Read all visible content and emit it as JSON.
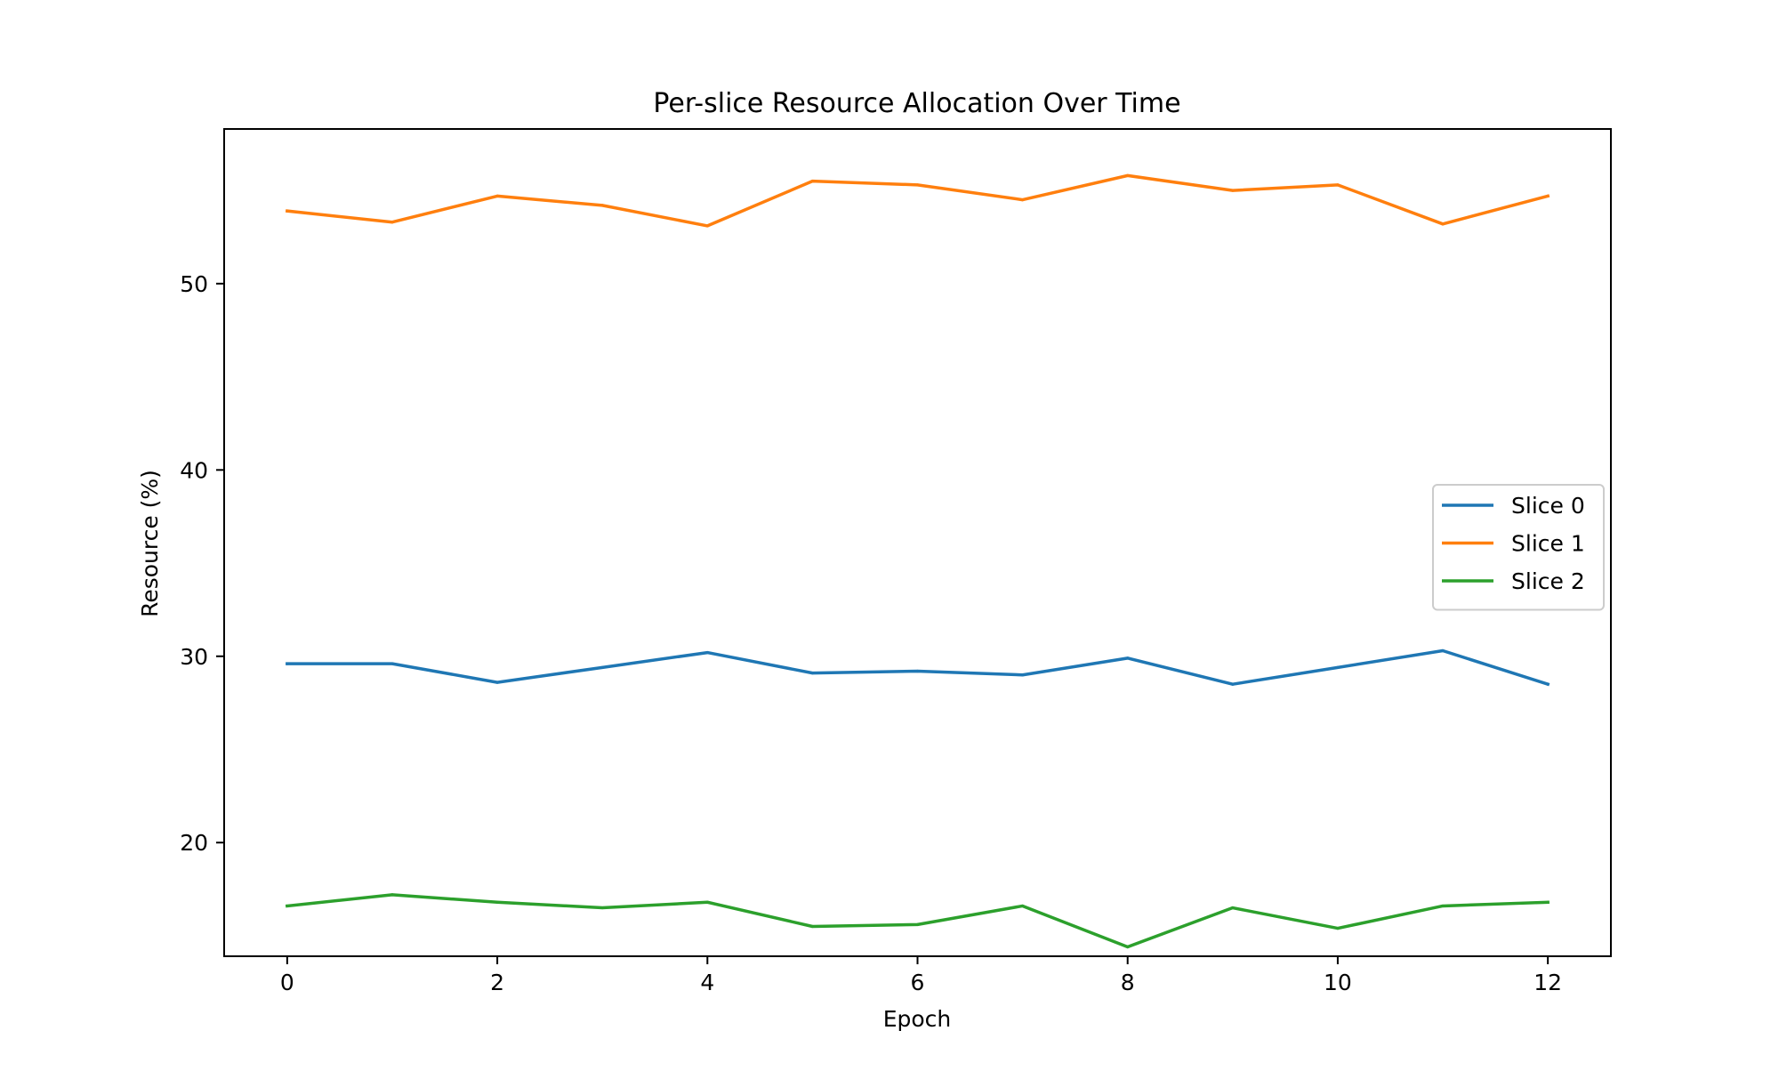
{
  "chart_data": {
    "type": "line",
    "title": "Per-slice Resource Allocation Over Time",
    "xlabel": "Epoch",
    "ylabel": "Resource (%)",
    "xlim": [
      -0.6,
      12.6
    ],
    "ylim": [
      13.9,
      58.3
    ],
    "xticks": [
      0,
      2,
      4,
      6,
      8,
      10,
      12
    ],
    "yticks": [
      20,
      30,
      40,
      50
    ],
    "grid": false,
    "legend_position": "center-right",
    "x": [
      0,
      1,
      2,
      3,
      4,
      5,
      6,
      7,
      8,
      9,
      10,
      11,
      12
    ],
    "series": [
      {
        "name": "Slice 0",
        "color": "#1f77b4",
        "values": [
          29.6,
          29.6,
          28.6,
          29.4,
          30.2,
          29.1,
          29.2,
          29.0,
          29.9,
          28.5,
          29.4,
          30.3,
          28.5
        ]
      },
      {
        "name": "Slice 1",
        "color": "#ff7f0e",
        "values": [
          53.9,
          53.3,
          54.7,
          54.2,
          53.1,
          55.5,
          55.3,
          54.5,
          55.8,
          55.0,
          55.3,
          53.2,
          54.7
        ]
      },
      {
        "name": "Slice 2",
        "color": "#2ca02c",
        "values": [
          16.6,
          17.2,
          16.8,
          16.5,
          16.8,
          15.5,
          15.6,
          16.6,
          14.4,
          16.5,
          15.4,
          16.6,
          16.8
        ]
      }
    ]
  }
}
